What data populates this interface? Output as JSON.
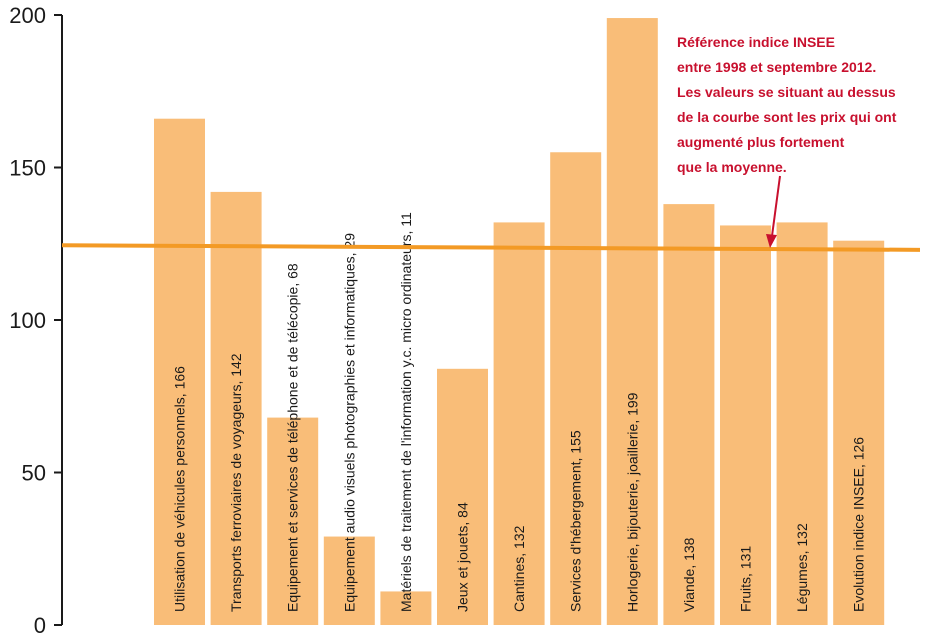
{
  "chart_data": {
    "type": "bar",
    "ylim": [
      0,
      200
    ],
    "yticks": [
      0,
      50,
      100,
      150,
      200
    ],
    "yticks_labels": [
      "0",
      "50",
      "100",
      "150",
      "200"
    ],
    "grid": false,
    "bar_color": "#f9bd78",
    "reference_line_color": "#f39a25",
    "annotation_color": "#c8102e",
    "categories": [
      "Utilisation de véhicules personnels, 166",
      "Transports ferroviaires de voyageurs, 142",
      "Equipement et services de téléphone et de télécopie, 68",
      "Equipement audio visuels photographies et informatiques, 29",
      "Matériels de traitement de l'information y.c. micro ordinateurs, 11",
      "Jeux et jouets, 84",
      "Cantines, 132",
      "Services d'hébergement, 155",
      "Horlogerie, bijouterie, joaillerie, 199",
      "Viande, 138",
      "Fruits, 131",
      "Légumes, 132",
      "Evolution indice INSEE, 126"
    ],
    "values": [
      166,
      142,
      68,
      29,
      11,
      84,
      132,
      155,
      199,
      138,
      131,
      132,
      126
    ],
    "reference_line": {
      "y_start": 124.5,
      "y_end": 123
    },
    "annotation": {
      "lines": [
        "Référence indice INSEE",
        "entre 1998 et septembre 2012.",
        "Les valeurs se situant au dessus",
        "de la courbe sont les prix qui ont",
        "augmenté plus fortement",
        "que la moyenne."
      ]
    }
  }
}
